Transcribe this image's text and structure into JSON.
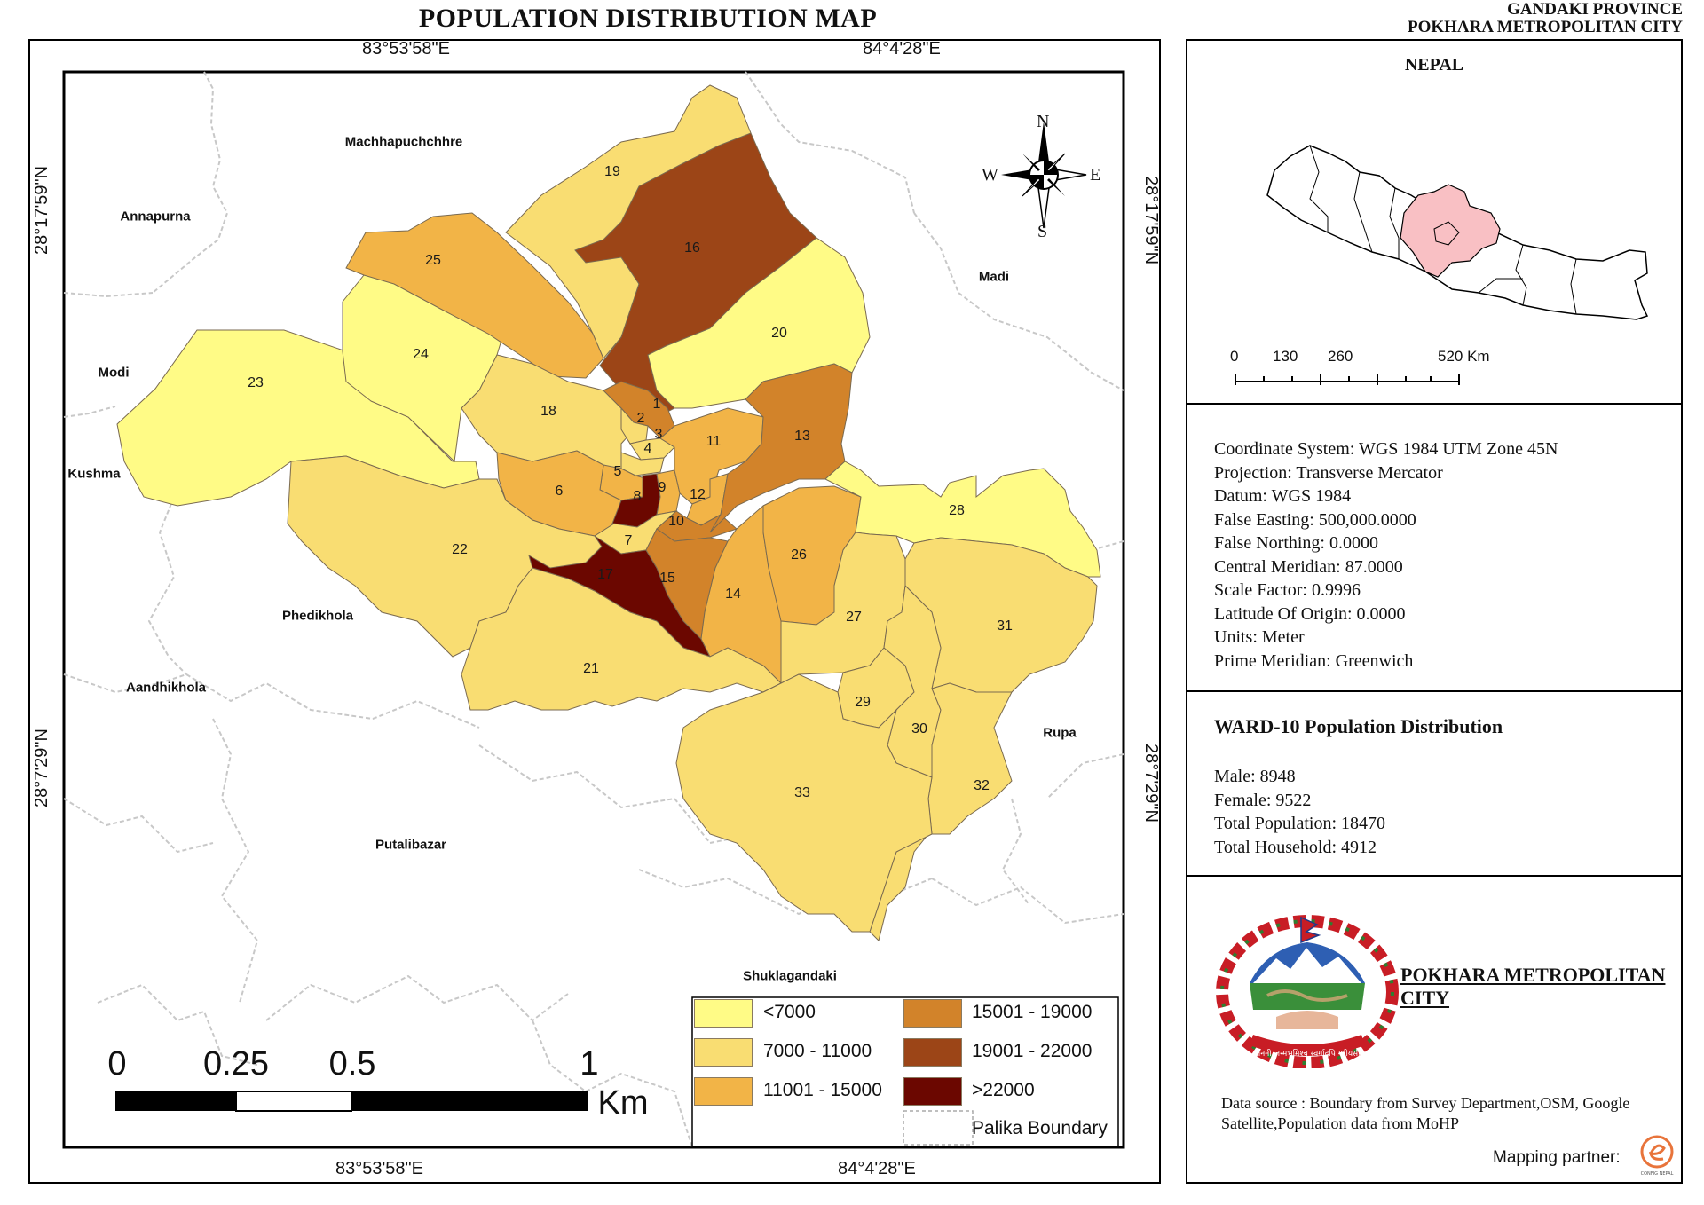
{
  "title": "POPULATION DISTRIBUTION MAP",
  "province": "GANDAKI PROVINCE",
  "city_header": "POKHARA METROPOLITAN CITY",
  "graticule": {
    "top_left": "83°53'58\"E",
    "top_right": "84°4'28\"E",
    "bottom_left": "83°53'58\"E",
    "bottom_right": "84°4'28\"E",
    "left_upper": "28°17'59\"N",
    "left_lower": "28°7'29\"N",
    "right_upper": "28°17'59\"N",
    "right_lower": "28°7'29\"N"
  },
  "north_arrow": {
    "n": "N",
    "s": "S",
    "e": "E",
    "w": "W"
  },
  "neighbors": [
    "Machhapuchchhre",
    "Annapurna",
    "Madi",
    "Modi",
    "Kushma",
    "Phedikhola",
    "Aandhikhola",
    "Putalibazar",
    "Shuklagandaki",
    "Rupa"
  ],
  "wards": [
    "1",
    "2",
    "3",
    "4",
    "5",
    "6",
    "7",
    "8",
    "9",
    "10",
    "11",
    "12",
    "13",
    "14",
    "15",
    "16",
    "17",
    "18",
    "19",
    "20",
    "21",
    "22",
    "23",
    "24",
    "25",
    "26",
    "27",
    "28",
    "29",
    "30",
    "31",
    "32",
    "33"
  ],
  "legend": {
    "classes": [
      {
        "label": "<7000",
        "color": "#FFFB86"
      },
      {
        "label": "7000 - 11000",
        "color": "#F9DD72"
      },
      {
        "label": "11001 - 15000",
        "color": "#F2B447"
      },
      {
        "label": "15001 - 19000",
        "color": "#D2832A"
      },
      {
        "label": "19001 - 22000",
        "color": "#9C4517"
      },
      {
        "label": ">22000",
        "color": "#6B0700"
      }
    ],
    "boundary_label": "Palika Boundary"
  },
  "scalebar": {
    "ticks": [
      "0",
      "0.25",
      "0.5",
      "1"
    ],
    "unit": "Km"
  },
  "inset": {
    "title": "NEPAL",
    "scale_ticks": [
      "0",
      "130",
      "260",
      "520 Km"
    ],
    "highlight_color": "#F9C0C4"
  },
  "projection_info": [
    "Coordinate System: WGS 1984 UTM Zone 45N",
    "Projection: Transverse Mercator",
    "Datum: WGS 1984",
    "False Easting: 500,000.0000",
    "False Northing: 0.0000",
    "Central Meridian: 87.0000",
    "Scale Factor: 0.9996",
    "Latitude Of Origin: 0.0000",
    "Units: Meter",
    "Prime Meridian: Greenwich"
  ],
  "ward_stats": {
    "heading": "WARD-10 Population Distribution",
    "male": "Male: 8948",
    "female": "Female: 9522",
    "total": "Total Population: 18470",
    "households": "Total Household: 4912"
  },
  "logo": {
    "name": "POKHARA METROPOLITAN CITY",
    "motto": "जननी जन्मभूमिश्च स्वर्गादपि गरीयसी"
  },
  "data_source": "Data source : Boundary from Survey Department,OSM, Google Satellite,Population data from MoHP",
  "mapping_partner": "Mapping partner:",
  "partner_logo_text": "CONFIG NEPAL"
}
